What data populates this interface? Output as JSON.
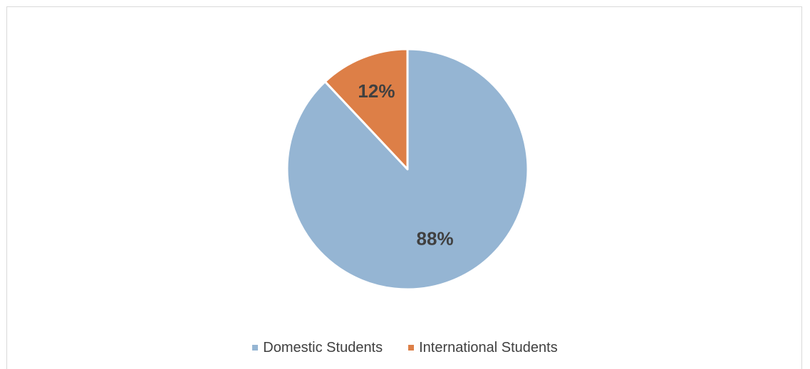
{
  "chart_data": {
    "type": "pie",
    "title": "",
    "start_angle_deg": 0,
    "direction": "clockwise",
    "slices": [
      {
        "label": "Domestic Students",
        "value": 88,
        "display": "88%",
        "color": "#95b5d3"
      },
      {
        "label": "International Students",
        "value": 12,
        "display": "12%",
        "color": "#dd7f47"
      }
    ],
    "legend_position": "bottom",
    "label_color": "#404040",
    "slice_border_color": "#ffffff"
  }
}
